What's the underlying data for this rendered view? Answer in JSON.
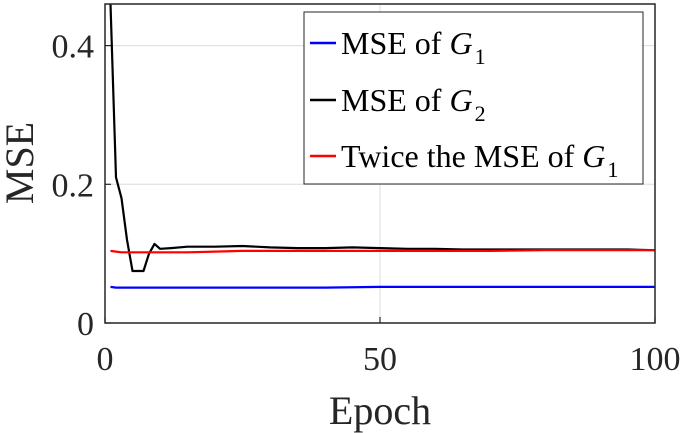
{
  "chart_data": {
    "type": "line",
    "title": "",
    "xlabel": "Epoch",
    "ylabel": "MSE",
    "xlim": [
      0,
      100
    ],
    "ylim": [
      0,
      0.46
    ],
    "xticks": [
      0,
      50,
      100
    ],
    "yticks": [
      0,
      0.2,
      0.4
    ],
    "xtick_labels": [
      "0",
      "50",
      "100"
    ],
    "ytick_labels": [
      "0",
      "0.2",
      "0.4"
    ],
    "grid": true,
    "legend_position": "top-right",
    "series": [
      {
        "name": "MSE of G1",
        "legend": {
          "text": "MSE of ",
          "symbol": "G",
          "subscript": "1"
        },
        "color": "#0000ff",
        "x": [
          1,
          2,
          3,
          4,
          5,
          10,
          20,
          30,
          40,
          50,
          60,
          70,
          80,
          90,
          100
        ],
        "y": [
          0.052,
          0.051,
          0.051,
          0.051,
          0.051,
          0.051,
          0.051,
          0.051,
          0.051,
          0.052,
          0.052,
          0.052,
          0.052,
          0.052,
          0.052
        ]
      },
      {
        "name": "MSE of G2",
        "legend": {
          "text": "MSE of ",
          "symbol": "G",
          "subscript": "2"
        },
        "color": "#000000",
        "x": [
          1,
          2,
          3,
          4,
          5,
          6,
          7,
          8,
          9,
          10,
          12,
          15,
          20,
          25,
          30,
          35,
          40,
          45,
          50,
          55,
          60,
          65,
          70,
          75,
          80,
          85,
          90,
          95,
          100
        ],
        "y": [
          0.46,
          0.21,
          0.18,
          0.12,
          0.075,
          0.075,
          0.075,
          0.1,
          0.114,
          0.107,
          0.108,
          0.11,
          0.11,
          0.111,
          0.109,
          0.108,
          0.108,
          0.109,
          0.108,
          0.107,
          0.107,
          0.106,
          0.106,
          0.106,
          0.106,
          0.106,
          0.106,
          0.106,
          0.105
        ]
      },
      {
        "name": "Twice the MSE of G1",
        "legend": {
          "text": "Twice the MSE of ",
          "symbol": "G",
          "subscript": "1"
        },
        "color": "#ff0000",
        "x": [
          1,
          2,
          3,
          5,
          8,
          10,
          15,
          20,
          25,
          30,
          40,
          50,
          60,
          70,
          80,
          90,
          100
        ],
        "y": [
          0.104,
          0.103,
          0.102,
          0.102,
          0.102,
          0.102,
          0.102,
          0.103,
          0.104,
          0.104,
          0.104,
          0.104,
          0.104,
          0.104,
          0.105,
          0.105,
          0.105
        ]
      }
    ]
  }
}
